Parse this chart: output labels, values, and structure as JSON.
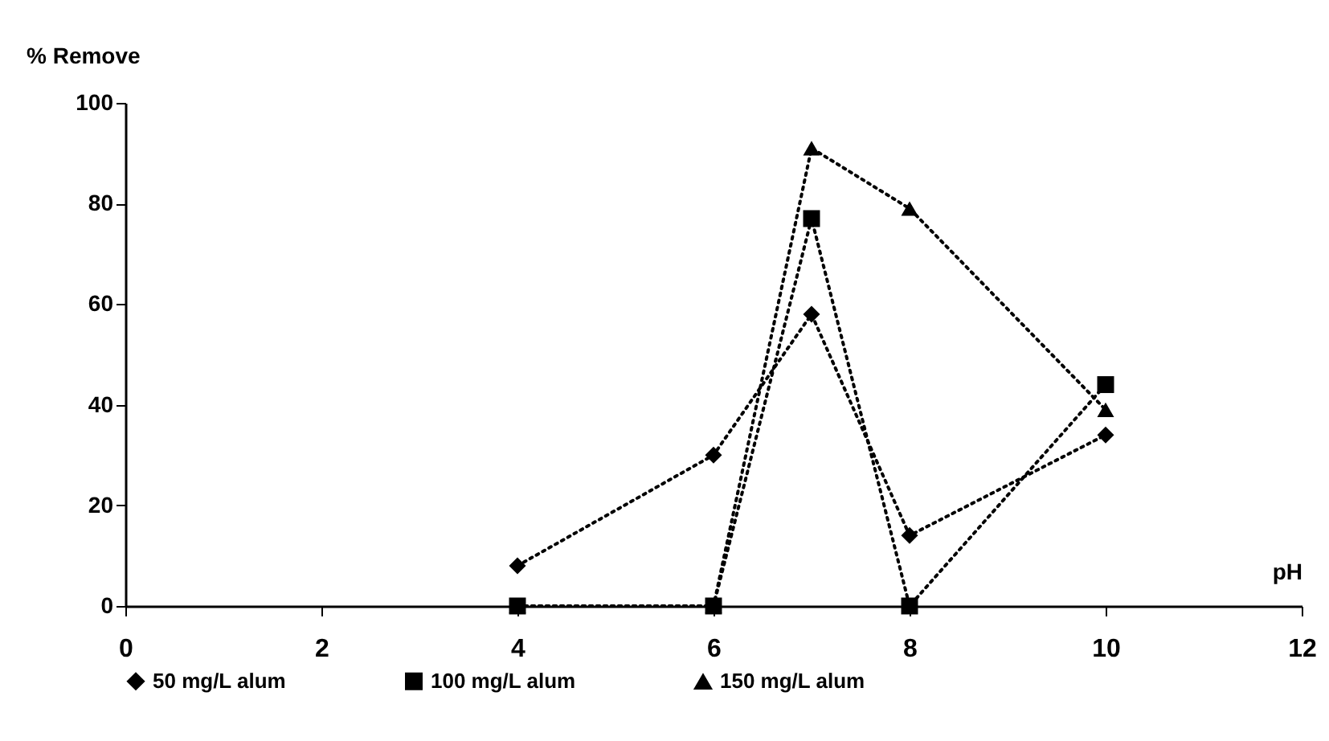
{
  "chart_data": {
    "type": "line",
    "xlabel": "pH",
    "ylabel": "% Remove",
    "x": [
      4,
      6,
      7,
      8,
      10
    ],
    "series": [
      {
        "name": "50 mg/L alum",
        "color": "#000000",
        "marker": "diamond",
        "values": [
          8,
          30,
          58,
          14,
          34
        ]
      },
      {
        "name": "100 mg/L alum",
        "color": "#000000",
        "marker": "square",
        "values": [
          0,
          0,
          77,
          0,
          44
        ]
      },
      {
        "name": "150 mg/L alum",
        "color": "#000000",
        "marker": "triangle",
        "values": [
          0,
          0,
          91,
          79,
          39
        ]
      }
    ],
    "xlim": [
      0,
      12
    ],
    "xticks": [
      0,
      2,
      4,
      6,
      8,
      10,
      12
    ],
    "ylim": [
      0,
      100
    ],
    "yticks": [
      0,
      20,
      40,
      60,
      80,
      100
    ],
    "grid": false,
    "legend": "bottom",
    "line_style": "dotted"
  }
}
